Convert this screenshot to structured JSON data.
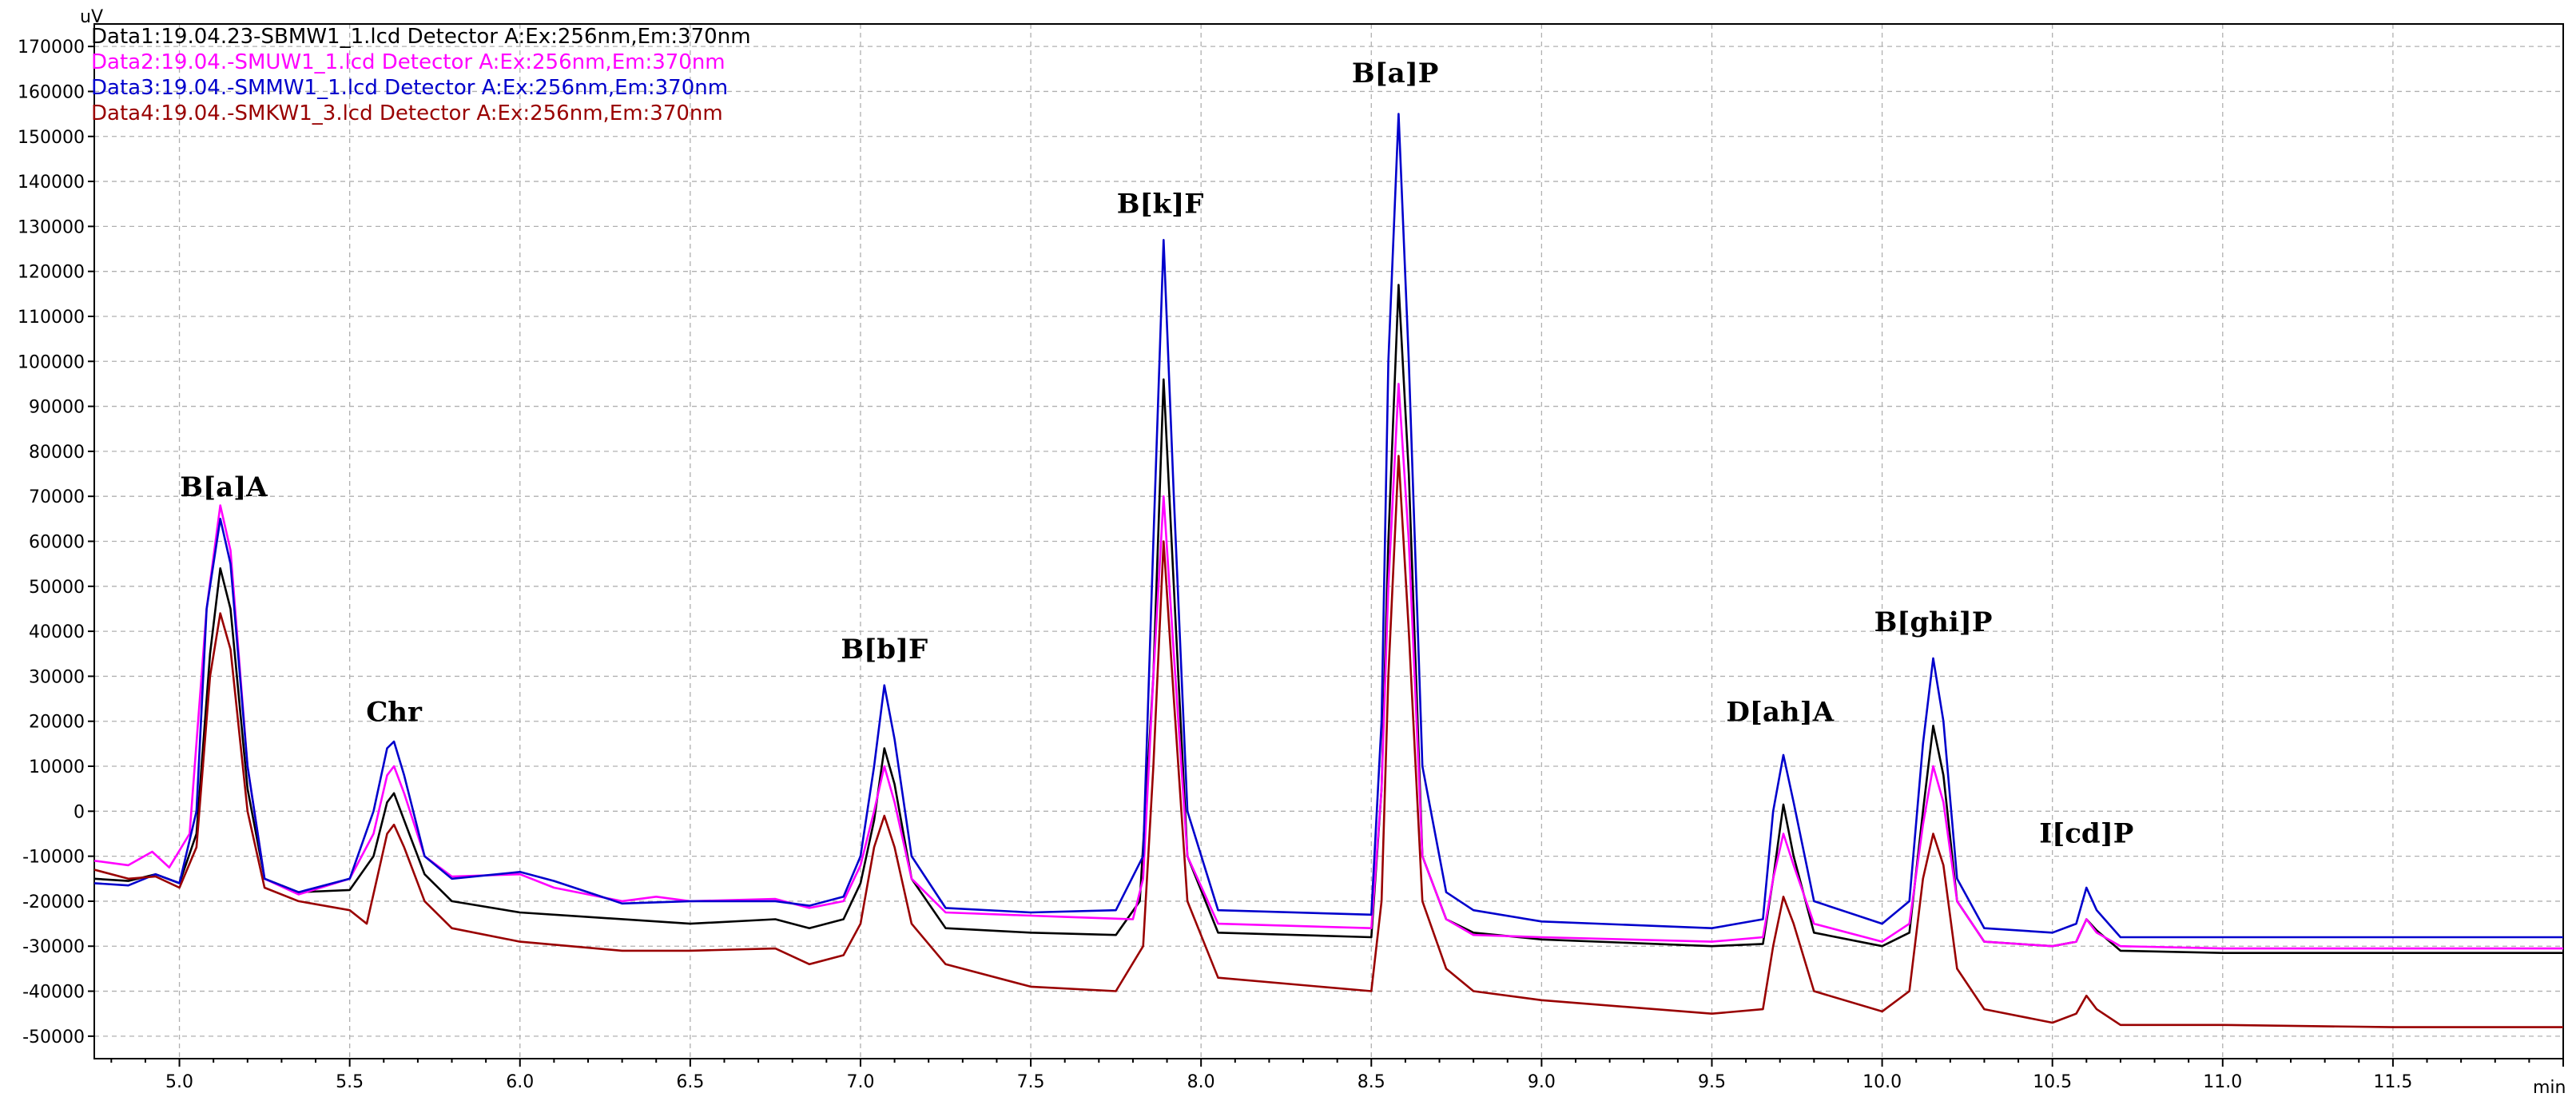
{
  "chart_data": {
    "type": "line",
    "title": "",
    "y_unit": "uV",
    "x_unit": "min",
    "xlim": [
      4.75,
      12.0
    ],
    "ylim": [
      -55000,
      175000
    ],
    "x_ticks": [
      5.0,
      5.5,
      6.0,
      6.5,
      7.0,
      7.5,
      8.0,
      8.5,
      9.0,
      9.5,
      10.0,
      10.5,
      11.0,
      11.5
    ],
    "x_tick_labels": [
      "5.0",
      "5.5",
      "6.0",
      "6.5",
      "7.0",
      "7.5",
      "8.0",
      "8.5",
      "9.0",
      "9.5",
      "10.0",
      "10.5",
      "11.0",
      "11.5"
    ],
    "y_ticks": [
      -50000,
      -40000,
      -30000,
      -20000,
      -10000,
      0,
      10000,
      20000,
      30000,
      40000,
      50000,
      60000,
      70000,
      80000,
      90000,
      100000,
      110000,
      120000,
      130000,
      140000,
      150000,
      160000,
      170000
    ],
    "y_tick_labels": [
      "-50000",
      "-40000",
      "-30000",
      "-20000",
      "-10000",
      "0",
      "10000",
      "20000",
      "30000",
      "40000",
      "50000",
      "60000",
      "70000",
      "80000",
      "90000",
      "100000",
      "110000",
      "120000",
      "130000",
      "140000",
      "150000",
      "160000",
      "170000"
    ],
    "grid": true,
    "legend_position": "top-left",
    "series": [
      {
        "name": "Data1:19.04.23-SBMW1_1.lcd Detector A:Ex:256nm,Em:370nm",
        "color": "#000000",
        "points": [
          [
            4.75,
            -15000
          ],
          [
            4.85,
            -15500
          ],
          [
            4.93,
            -14000
          ],
          [
            5.0,
            -16000
          ],
          [
            5.05,
            -5000
          ],
          [
            5.09,
            35000
          ],
          [
            5.12,
            54000
          ],
          [
            5.15,
            45000
          ],
          [
            5.2,
            5000
          ],
          [
            5.25,
            -15000
          ],
          [
            5.35,
            -18000
          ],
          [
            5.5,
            -17500
          ],
          [
            5.57,
            -10000
          ],
          [
            5.61,
            2000
          ],
          [
            5.63,
            4000
          ],
          [
            5.66,
            -2000
          ],
          [
            5.72,
            -14000
          ],
          [
            5.8,
            -20000
          ],
          [
            6.0,
            -22500
          ],
          [
            6.5,
            -25000
          ],
          [
            6.75,
            -24000
          ],
          [
            6.85,
            -26000
          ],
          [
            6.95,
            -24000
          ],
          [
            7.0,
            -16000
          ],
          [
            7.04,
            -2000
          ],
          [
            7.07,
            14000
          ],
          [
            7.1,
            6000
          ],
          [
            7.15,
            -15000
          ],
          [
            7.25,
            -26000
          ],
          [
            7.5,
            -27000
          ],
          [
            7.75,
            -27500
          ],
          [
            7.82,
            -20000
          ],
          [
            7.86,
            30000
          ],
          [
            7.89,
            96000
          ],
          [
            7.92,
            50000
          ],
          [
            7.96,
            -10000
          ],
          [
            8.05,
            -27000
          ],
          [
            8.5,
            -28000
          ],
          [
            8.53,
            5000
          ],
          [
            8.55,
            60000
          ],
          [
            8.58,
            117000
          ],
          [
            8.61,
            75000
          ],
          [
            8.65,
            -10000
          ],
          [
            8.72,
            -24000
          ],
          [
            8.8,
            -27000
          ],
          [
            9.0,
            -28500
          ],
          [
            9.5,
            -30000
          ],
          [
            9.65,
            -29500
          ],
          [
            9.68,
            -15000
          ],
          [
            9.71,
            1500
          ],
          [
            9.74,
            -10000
          ],
          [
            9.8,
            -27000
          ],
          [
            10.0,
            -30000
          ],
          [
            10.08,
            -27000
          ],
          [
            10.12,
            0
          ],
          [
            10.15,
            19000
          ],
          [
            10.18,
            8000
          ],
          [
            10.22,
            -20000
          ],
          [
            10.3,
            -29000
          ],
          [
            10.5,
            -30000
          ],
          [
            10.57,
            -29000
          ],
          [
            10.6,
            -24000
          ],
          [
            10.63,
            -26500
          ],
          [
            10.7,
            -31000
          ],
          [
            11.0,
            -31500
          ],
          [
            11.5,
            -31500
          ],
          [
            12.0,
            -31500
          ]
        ]
      },
      {
        "name": "Data2:19.04.-SMUW1_1.lcd Detector A:Ex:256nm,Em:370nm",
        "color": "#ff00ff",
        "points": [
          [
            4.75,
            -11000
          ],
          [
            4.85,
            -12000
          ],
          [
            4.92,
            -9000
          ],
          [
            4.97,
            -12500
          ],
          [
            5.03,
            -5000
          ],
          [
            5.08,
            45000
          ],
          [
            5.12,
            68000
          ],
          [
            5.15,
            58000
          ],
          [
            5.2,
            10000
          ],
          [
            5.25,
            -15000
          ],
          [
            5.35,
            -18500
          ],
          [
            5.5,
            -15000
          ],
          [
            5.57,
            -5000
          ],
          [
            5.61,
            8000
          ],
          [
            5.63,
            10000
          ],
          [
            5.66,
            4000
          ],
          [
            5.72,
            -10000
          ],
          [
            5.8,
            -14500
          ],
          [
            6.0,
            -14000
          ],
          [
            6.1,
            -17000
          ],
          [
            6.3,
            -20000
          ],
          [
            6.4,
            -19000
          ],
          [
            6.5,
            -20000
          ],
          [
            6.75,
            -19500
          ],
          [
            6.85,
            -21500
          ],
          [
            6.95,
            -20000
          ],
          [
            7.0,
            -12000
          ],
          [
            7.04,
            0
          ],
          [
            7.07,
            10000
          ],
          [
            7.1,
            2000
          ],
          [
            7.15,
            -15000
          ],
          [
            7.25,
            -22500
          ],
          [
            7.6,
            -23500
          ],
          [
            7.8,
            -24000
          ],
          [
            7.83,
            -15000
          ],
          [
            7.86,
            30000
          ],
          [
            7.89,
            70000
          ],
          [
            7.92,
            35000
          ],
          [
            7.96,
            -10000
          ],
          [
            8.05,
            -25000
          ],
          [
            8.5,
            -26000
          ],
          [
            8.53,
            5000
          ],
          [
            8.55,
            50000
          ],
          [
            8.58,
            95000
          ],
          [
            8.61,
            60000
          ],
          [
            8.65,
            -10000
          ],
          [
            8.72,
            -24000
          ],
          [
            8.8,
            -27500
          ],
          [
            9.0,
            -28000
          ],
          [
            9.5,
            -29000
          ],
          [
            9.65,
            -28000
          ],
          [
            9.68,
            -15000
          ],
          [
            9.71,
            -5000
          ],
          [
            9.74,
            -12000
          ],
          [
            9.8,
            -25000
          ],
          [
            10.0,
            -29000
          ],
          [
            10.08,
            -25000
          ],
          [
            10.12,
            -3000
          ],
          [
            10.15,
            10000
          ],
          [
            10.18,
            2000
          ],
          [
            10.22,
            -20000
          ],
          [
            10.3,
            -29000
          ],
          [
            10.5,
            -30000
          ],
          [
            10.57,
            -29000
          ],
          [
            10.6,
            -24000
          ],
          [
            10.63,
            -27000
          ],
          [
            10.7,
            -30000
          ],
          [
            11.0,
            -30500
          ],
          [
            11.5,
            -30500
          ],
          [
            12.0,
            -30500
          ]
        ]
      },
      {
        "name": "Data3:19.04.-SMMW1_1.lcd Detector A:Ex:256nm,Em:370nm",
        "color": "#0000cc",
        "points": [
          [
            4.75,
            -16000
          ],
          [
            4.85,
            -16500
          ],
          [
            4.93,
            -14000
          ],
          [
            5.0,
            -16000
          ],
          [
            5.05,
            0
          ],
          [
            5.08,
            45000
          ],
          [
            5.12,
            65000
          ],
          [
            5.15,
            55000
          ],
          [
            5.2,
            10000
          ],
          [
            5.25,
            -15000
          ],
          [
            5.35,
            -18000
          ],
          [
            5.5,
            -15000
          ],
          [
            5.57,
            0
          ],
          [
            5.61,
            14000
          ],
          [
            5.63,
            15500
          ],
          [
            5.66,
            8000
          ],
          [
            5.72,
            -10000
          ],
          [
            5.8,
            -15000
          ],
          [
            6.0,
            -13500
          ],
          [
            6.1,
            -15500
          ],
          [
            6.3,
            -20500
          ],
          [
            6.5,
            -20000
          ],
          [
            6.75,
            -20000
          ],
          [
            6.85,
            -21000
          ],
          [
            6.95,
            -19000
          ],
          [
            7.0,
            -10000
          ],
          [
            7.04,
            10000
          ],
          [
            7.07,
            28000
          ],
          [
            7.1,
            16000
          ],
          [
            7.15,
            -10000
          ],
          [
            7.25,
            -21500
          ],
          [
            7.5,
            -22500
          ],
          [
            7.75,
            -22000
          ],
          [
            7.83,
            -10000
          ],
          [
            7.86,
            60000
          ],
          [
            7.89,
            127000
          ],
          [
            7.92,
            70000
          ],
          [
            7.96,
            0
          ],
          [
            8.05,
            -22000
          ],
          [
            8.5,
            -23000
          ],
          [
            8.53,
            20000
          ],
          [
            8.55,
            100000
          ],
          [
            8.58,
            155000
          ],
          [
            8.61,
            100000
          ],
          [
            8.65,
            10000
          ],
          [
            8.72,
            -18000
          ],
          [
            8.8,
            -22000
          ],
          [
            9.0,
            -24500
          ],
          [
            9.5,
            -26000
          ],
          [
            9.65,
            -24000
          ],
          [
            9.68,
            0
          ],
          [
            9.71,
            12500
          ],
          [
            9.74,
            2000
          ],
          [
            9.8,
            -20000
          ],
          [
            10.0,
            -25000
          ],
          [
            10.08,
            -20000
          ],
          [
            10.12,
            15000
          ],
          [
            10.15,
            34000
          ],
          [
            10.18,
            20000
          ],
          [
            10.22,
            -15000
          ],
          [
            10.3,
            -26000
          ],
          [
            10.5,
            -27000
          ],
          [
            10.57,
            -25000
          ],
          [
            10.6,
            -17000
          ],
          [
            10.63,
            -22000
          ],
          [
            10.7,
            -28000
          ],
          [
            11.0,
            -28000
          ],
          [
            11.5,
            -28000
          ],
          [
            12.0,
            -28000
          ]
        ]
      },
      {
        "name": "Data4:19.04.-SMKW1_3.lcd Detector A:Ex:256nm,Em:370nm",
        "color": "#990000",
        "points": [
          [
            4.75,
            -13000
          ],
          [
            4.85,
            -15000
          ],
          [
            4.93,
            -14500
          ],
          [
            5.0,
            -17000
          ],
          [
            5.05,
            -8000
          ],
          [
            5.09,
            30000
          ],
          [
            5.12,
            44000
          ],
          [
            5.15,
            36000
          ],
          [
            5.2,
            0
          ],
          [
            5.25,
            -17000
          ],
          [
            5.35,
            -20000
          ],
          [
            5.5,
            -22000
          ],
          [
            5.55,
            -25000
          ],
          [
            5.58,
            -15000
          ],
          [
            5.61,
            -5000
          ],
          [
            5.63,
            -3000
          ],
          [
            5.66,
            -8000
          ],
          [
            5.72,
            -20000
          ],
          [
            5.8,
            -26000
          ],
          [
            6.0,
            -29000
          ],
          [
            6.3,
            -31000
          ],
          [
            6.5,
            -31000
          ],
          [
            6.75,
            -30500
          ],
          [
            6.85,
            -34000
          ],
          [
            6.95,
            -32000
          ],
          [
            7.0,
            -25000
          ],
          [
            7.04,
            -8000
          ],
          [
            7.07,
            -1000
          ],
          [
            7.1,
            -8000
          ],
          [
            7.15,
            -25000
          ],
          [
            7.25,
            -34000
          ],
          [
            7.5,
            -39000
          ],
          [
            7.75,
            -40000
          ],
          [
            7.83,
            -30000
          ],
          [
            7.86,
            10000
          ],
          [
            7.89,
            60000
          ],
          [
            7.92,
            25000
          ],
          [
            7.96,
            -20000
          ],
          [
            8.05,
            -37000
          ],
          [
            8.5,
            -40000
          ],
          [
            8.53,
            -20000
          ],
          [
            8.55,
            30000
          ],
          [
            8.58,
            79000
          ],
          [
            8.61,
            40000
          ],
          [
            8.65,
            -20000
          ],
          [
            8.72,
            -35000
          ],
          [
            8.8,
            -40000
          ],
          [
            9.0,
            -42000
          ],
          [
            9.5,
            -45000
          ],
          [
            9.65,
            -44000
          ],
          [
            9.68,
            -30000
          ],
          [
            9.71,
            -19000
          ],
          [
            9.74,
            -25000
          ],
          [
            9.8,
            -40000
          ],
          [
            10.0,
            -44500
          ],
          [
            10.08,
            -40000
          ],
          [
            10.12,
            -15000
          ],
          [
            10.15,
            -5000
          ],
          [
            10.18,
            -12000
          ],
          [
            10.22,
            -35000
          ],
          [
            10.3,
            -44000
          ],
          [
            10.5,
            -47000
          ],
          [
            10.57,
            -45000
          ],
          [
            10.6,
            -41000
          ],
          [
            10.63,
            -44000
          ],
          [
            10.7,
            -47500
          ],
          [
            11.0,
            -47500
          ],
          [
            11.5,
            -48000
          ],
          [
            12.0,
            -48000
          ]
        ]
      }
    ],
    "annotations": [
      {
        "text": "B[a]A",
        "x": 5.13,
        "y": 70000
      },
      {
        "text": "Chr",
        "x": 5.63,
        "y": 20000
      },
      {
        "text": "B[b]F",
        "x": 7.07,
        "y": 34000
      },
      {
        "text": "B[k]F",
        "x": 7.88,
        "y": 133000
      },
      {
        "text": "B[a]P",
        "x": 8.57,
        "y": 162000
      },
      {
        "text": "D[ah]A",
        "x": 9.7,
        "y": 20000
      },
      {
        "text": "B[ghi]P",
        "x": 10.15,
        "y": 40000
      },
      {
        "text": "I[cd]P",
        "x": 10.6,
        "y": -7000
      }
    ]
  }
}
